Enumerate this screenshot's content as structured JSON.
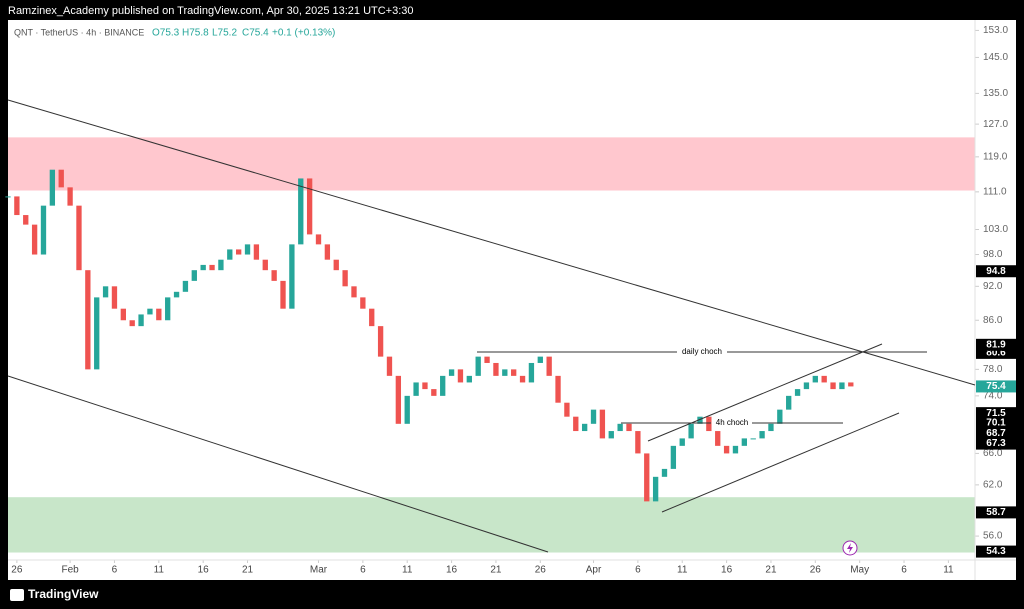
{
  "header": {
    "publisher": "Ramzinex_Academy published on TradingView.com, Apr 30, 2025 13:21 UTC+3:30",
    "symbol": "QNT · TetherUS · 4h · BINANCE",
    "ohlc": [
      "O75.3",
      "H75.8",
      "L75.2",
      "C75.4",
      "+0.1 (+0.13%)"
    ]
  },
  "annotations": [
    "daily choch",
    "4h choch"
  ],
  "footer": "TradingView",
  "chart_data": {
    "type": "candlestick",
    "log_scale": true,
    "x": [
      "2025-01-25",
      "2025-01-26",
      "2025-01-27",
      "2025-01-28",
      "2025-01-29",
      "2025-01-30",
      "2025-01-31",
      "2025-02-01",
      "2025-02-02",
      "2025-02-03",
      "2025-02-04",
      "2025-02-05",
      "2025-02-06",
      "2025-02-07",
      "2025-02-08",
      "2025-02-09",
      "2025-02-10",
      "2025-02-11",
      "2025-02-12",
      "2025-02-13",
      "2025-02-14",
      "2025-02-15",
      "2025-02-16",
      "2025-02-17",
      "2025-02-18",
      "2025-02-19",
      "2025-02-20",
      "2025-02-21",
      "2025-02-22",
      "2025-02-23",
      "2025-02-24",
      "2025-02-25",
      "2025-02-26",
      "2025-02-27",
      "2025-02-28",
      "2025-03-01",
      "2025-03-02",
      "2025-03-03",
      "2025-03-04",
      "2025-03-05",
      "2025-03-06",
      "2025-03-07",
      "2025-03-08",
      "2025-03-09",
      "2025-03-10",
      "2025-03-11",
      "2025-03-12",
      "2025-03-13",
      "2025-03-14",
      "2025-03-15",
      "2025-03-16",
      "2025-03-17",
      "2025-03-18",
      "2025-03-19",
      "2025-03-20",
      "2025-03-21",
      "2025-03-22",
      "2025-03-23",
      "2025-03-24",
      "2025-03-25",
      "2025-03-26",
      "2025-03-27",
      "2025-03-28",
      "2025-03-29",
      "2025-03-30",
      "2025-03-31",
      "2025-04-01",
      "2025-04-02",
      "2025-04-03",
      "2025-04-04",
      "2025-04-05",
      "2025-04-06",
      "2025-04-07",
      "2025-04-08",
      "2025-04-09",
      "2025-04-10",
      "2025-04-11",
      "2025-04-12",
      "2025-04-13",
      "2025-04-14",
      "2025-04-15",
      "2025-04-16",
      "2025-04-17",
      "2025-04-18",
      "2025-04-19",
      "2025-04-20",
      "2025-04-21",
      "2025-04-22",
      "2025-04-23",
      "2025-04-24",
      "2025-04-25",
      "2025-04-26",
      "2025-04-27",
      "2025-04-28",
      "2025-04-29",
      "2025-04-30"
    ],
    "values": [
      110,
      106,
      104,
      98,
      108,
      116,
      112,
      108,
      95,
      78,
      90,
      92,
      88,
      86,
      85,
      87,
      88,
      86,
      90,
      91,
      93,
      95,
      96,
      95,
      97,
      99,
      98,
      100,
      97,
      95,
      93,
      88,
      100,
      114,
      102,
      100,
      97,
      95,
      92,
      90,
      88,
      85,
      80,
      77,
      70,
      74,
      76,
      75,
      74,
      77,
      78,
      76,
      77,
      80,
      79,
      77,
      78,
      77,
      76,
      79,
      80,
      77,
      73,
      71,
      69,
      70,
      72,
      68,
      69,
      70,
      69,
      66,
      60,
      63,
      64,
      67,
      68,
      70,
      71,
      69,
      67,
      66,
      67,
      68,
      68,
      69,
      70,
      72,
      74,
      75,
      76,
      77,
      76,
      75,
      76,
      75.4
    ],
    "up_color": "#26a69a",
    "down_color": "#ef5350",
    "xlim": [
      "2025-01-25",
      "2025-05-14"
    ],
    "xticks": [
      {
        "value": "2025-01-26",
        "label": "26"
      },
      {
        "value": "2025-02-01",
        "label": "Feb"
      },
      {
        "value": "2025-02-06",
        "label": "6"
      },
      {
        "value": "2025-02-11",
        "label": "11"
      },
      {
        "value": "2025-02-16",
        "label": "16"
      },
      {
        "value": "2025-02-21",
        "label": "21"
      },
      {
        "value": "2025-03-01",
        "label": "Mar"
      },
      {
        "value": "2025-03-06",
        "label": "6"
      },
      {
        "value": "2025-03-11",
        "label": "11"
      },
      {
        "value": "2025-03-16",
        "label": "16"
      },
      {
        "value": "2025-03-21",
        "label": "21"
      },
      {
        "value": "2025-03-26",
        "label": "26"
      },
      {
        "value": "2025-04-01",
        "label": "Apr"
      },
      {
        "value": "2025-04-06",
        "label": "6"
      },
      {
        "value": "2025-04-11",
        "label": "11"
      },
      {
        "value": "2025-04-16",
        "label": "16"
      },
      {
        "value": "2025-04-21",
        "label": "21"
      },
      {
        "value": "2025-04-26",
        "label": "26"
      },
      {
        "value": "2025-05-01",
        "label": "May"
      },
      {
        "value": "2025-05-06",
        "label": "6"
      },
      {
        "value": "2025-05-11",
        "label": "11"
      }
    ],
    "ylim": [
      53.4,
      156.2
    ],
    "yticks": [
      {
        "value": 153,
        "label": "153.0"
      },
      {
        "value": 145,
        "label": "145.0"
      },
      {
        "value": 135,
        "label": "135.0"
      },
      {
        "value": 127,
        "label": "127.0"
      },
      {
        "value": 119,
        "label": "119.0"
      },
      {
        "value": 111,
        "label": "111.0"
      },
      {
        "value": 103,
        "label": "103.0"
      },
      {
        "value": 98,
        "label": "98.0"
      },
      {
        "value": 92,
        "label": "92.0"
      },
      {
        "value": 86,
        "label": "86.0"
      },
      {
        "value": 78,
        "label": "78.0"
      },
      {
        "value": 74,
        "label": "74.0"
      },
      {
        "value": 66,
        "label": "66.0"
      },
      {
        "value": 62,
        "label": "62.0"
      },
      {
        "value": 56,
        "label": "56.0"
      }
    ],
    "zones": [
      {
        "from": 111.3,
        "to": 123.7,
        "color": "#ffc7ce"
      },
      {
        "from": 54.2,
        "to": 60.5,
        "color": "#c8e6c9"
      }
    ],
    "price_labels": [
      {
        "value": 94.8,
        "color": "#000000"
      },
      {
        "value": 80.6,
        "color": "#000000"
      },
      {
        "value": 81.9,
        "color": "#000000"
      },
      {
        "value": 75.4,
        "color": "#26a69a"
      },
      {
        "value": 71.5,
        "color": "#000000"
      },
      {
        "value": 70.1,
        "color": "#000000"
      },
      {
        "value": 68.7,
        "color": "#000000"
      },
      {
        "value": 67.3,
        "color": "#000000"
      },
      {
        "value": 58.7,
        "color": "#000000"
      },
      {
        "value": 54.3,
        "color": "#000000"
      }
    ]
  }
}
